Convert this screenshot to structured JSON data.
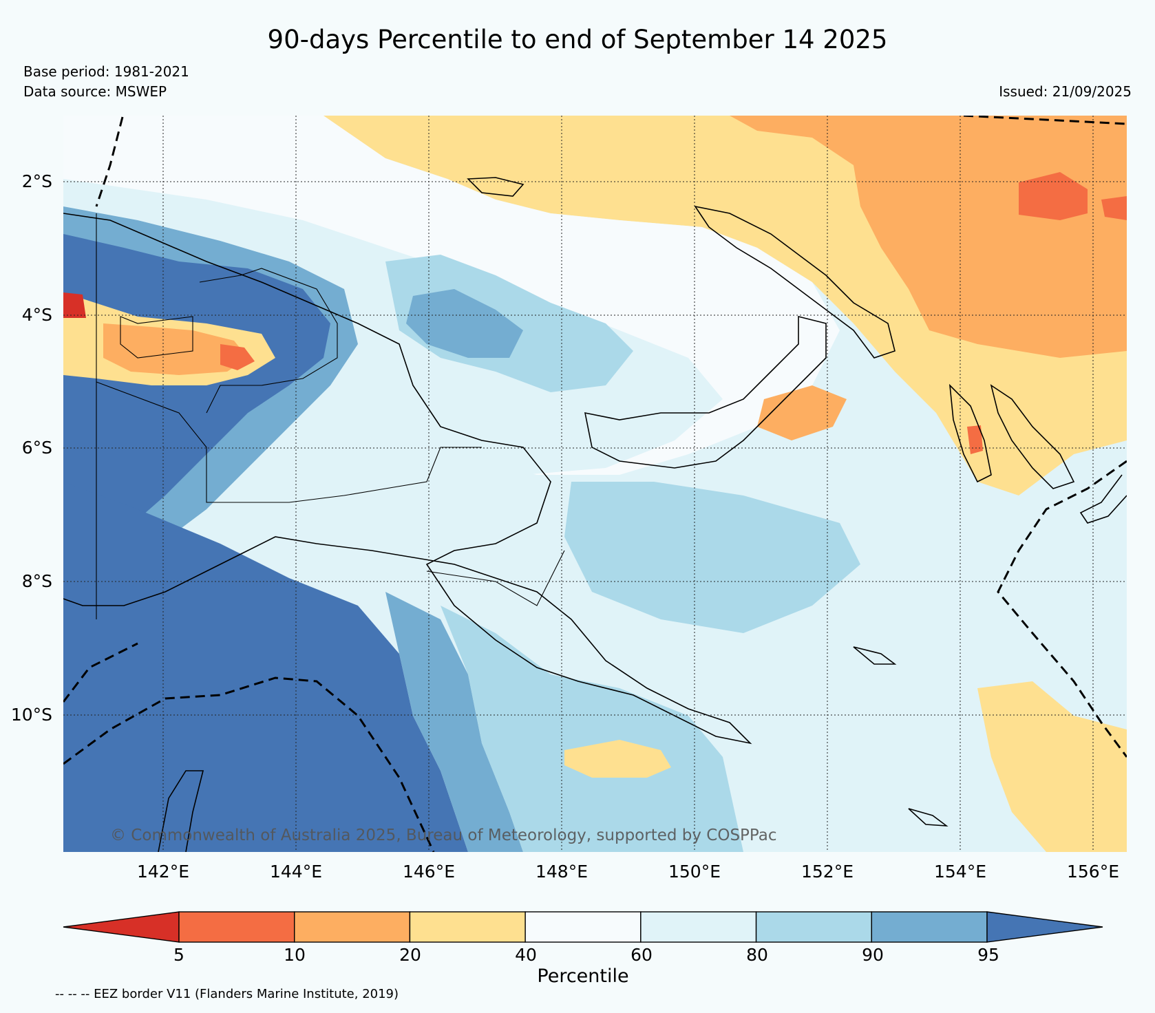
{
  "title": "90-days Percentile to end of September 14 2025",
  "base_period": "Base period: 1981-2021",
  "data_source": "Data source: MSWEP",
  "issued": "Issued: 21/09/2025",
  "copyright": "© Commonwealth of Australia 2025, Bureau of Meteorology, supported by COSPPac",
  "lat_labels": [
    "2°S",
    "4°S",
    "6°S",
    "8°S",
    "10°S"
  ],
  "lon_labels": [
    "142°E",
    "144°E",
    "146°E",
    "148°E",
    "150°E",
    "152°E",
    "154°E",
    "156°E"
  ],
  "colorbar": {
    "title": "Percentile",
    "ticks": [
      "5",
      "10",
      "20",
      "40",
      "60",
      "80",
      "90",
      "95"
    ],
    "colors": [
      "#d73027",
      "#f46d43",
      "#fdae61",
      "#fee090",
      "#f7fbfd",
      "#e0f3f8",
      "#abd9e9",
      "#74add1",
      "#4575b4"
    ]
  },
  "eez_note": "-- -- -- EEZ border V11 (Flanders Marine Institute, 2019)"
}
